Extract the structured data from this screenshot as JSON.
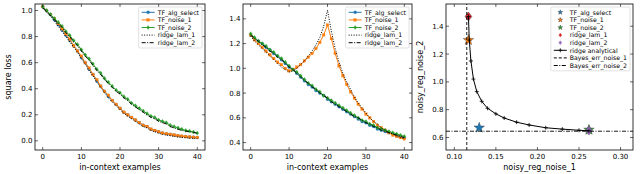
{
  "chart_data": [
    {
      "type": "line",
      "xlabel": "in-context examples",
      "ylabel": "square loss",
      "legend": "upper right",
      "grid": false,
      "xlim": [
        -2,
        42
      ],
      "xticks": [
        0,
        10,
        20,
        30,
        40
      ],
      "ylim": [
        -0.07,
        1.05
      ],
      "yticks": [
        {
          "value": 0,
          "label": "0.0"
        },
        0.2,
        0.4,
        0.6,
        0.8,
        {
          "value": 1,
          "label": "1.0"
        }
      ],
      "x": [
        0,
        1,
        2,
        3,
        4,
        5,
        6,
        7,
        8,
        9,
        10,
        11,
        12,
        13,
        14,
        15,
        16,
        17,
        18,
        19,
        20,
        21,
        22,
        23,
        24,
        25,
        26,
        27,
        28,
        29,
        30,
        31,
        32,
        33,
        34,
        35,
        36,
        37,
        38,
        39,
        40
      ],
      "series": [
        {
          "name": "TF_alg_select",
          "color": "#1f77b4",
          "marker": "circle",
          "line_style": "solid",
          "values": [
            1.03,
            1.0,
            0.97,
            0.93,
            0.89,
            0.85,
            0.81,
            0.77,
            0.73,
            0.69,
            0.64,
            0.6,
            0.55,
            0.51,
            0.46,
            0.42,
            0.38,
            0.34,
            0.31,
            0.28,
            0.25,
            0.22,
            0.2,
            0.18,
            0.16,
            0.14,
            0.12,
            0.11,
            0.09,
            0.08,
            0.07,
            0.06,
            0.055,
            0.05,
            0.045,
            0.04,
            0.035,
            0.033,
            0.03,
            0.028,
            0.026
          ]
        },
        {
          "name": "TF_noise_1",
          "color": "#ff7f0e",
          "marker": "square",
          "line_style": "solid",
          "values": [
            1.03,
            1.0,
            0.97,
            0.94,
            0.9,
            0.86,
            0.82,
            0.78,
            0.73,
            0.69,
            0.65,
            0.6,
            0.56,
            0.51,
            0.47,
            0.42,
            0.38,
            0.35,
            0.31,
            0.28,
            0.25,
            0.22,
            0.2,
            0.18,
            0.16,
            0.14,
            0.12,
            0.11,
            0.09,
            0.08,
            0.07,
            0.06,
            0.055,
            0.05,
            0.045,
            0.04,
            0.036,
            0.033,
            0.03,
            0.028,
            0.026
          ]
        },
        {
          "name": "TF_noise_2",
          "color": "#2ca02c",
          "marker": "diamond",
          "line_style": "solid",
          "values": [
            1.03,
            1.0,
            0.97,
            0.94,
            0.91,
            0.88,
            0.84,
            0.81,
            0.77,
            0.74,
            0.7,
            0.66,
            0.63,
            0.59,
            0.55,
            0.52,
            0.48,
            0.45,
            0.42,
            0.39,
            0.37,
            0.34,
            0.32,
            0.29,
            0.27,
            0.25,
            0.23,
            0.21,
            0.19,
            0.18,
            0.16,
            0.15,
            0.14,
            0.12,
            0.11,
            0.1,
            0.09,
            0.08,
            0.075,
            0.068,
            0.06
          ]
        },
        {
          "name": "ridge_lam_1",
          "color": "#000000",
          "line_style": "dotted",
          "values": [
            1.02,
            0.99,
            0.96,
            0.92,
            0.88,
            0.84,
            0.8,
            0.76,
            0.72,
            0.68,
            0.63,
            0.59,
            0.54,
            0.5,
            0.45,
            0.41,
            0.37,
            0.33,
            0.3,
            0.27,
            0.24,
            0.21,
            0.19,
            0.17,
            0.15,
            0.13,
            0.11,
            0.1,
            0.08,
            0.07,
            0.06,
            0.05,
            0.045,
            0.04,
            0.035,
            0.03,
            0.027,
            0.024,
            0.022,
            0.02,
            0.018
          ]
        },
        {
          "name": "ridge_lam_2",
          "color": "#000000",
          "line_style": "dashdot",
          "values": [
            1.02,
            0.99,
            0.96,
            0.93,
            0.9,
            0.87,
            0.83,
            0.8,
            0.76,
            0.73,
            0.69,
            0.65,
            0.62,
            0.58,
            0.54,
            0.51,
            0.47,
            0.44,
            0.41,
            0.38,
            0.36,
            0.33,
            0.31,
            0.28,
            0.26,
            0.24,
            0.22,
            0.2,
            0.18,
            0.17,
            0.15,
            0.14,
            0.13,
            0.11,
            0.1,
            0.09,
            0.08,
            0.075,
            0.07,
            0.065,
            0.058
          ]
        }
      ]
    },
    {
      "type": "line",
      "xlabel": "in-context examples",
      "legend": "upper right",
      "grid": false,
      "xlim": [
        -2,
        42
      ],
      "xticks": [
        0,
        10,
        20,
        30,
        40
      ],
      "ylim": [
        0.34,
        1.52
      ],
      "yticks": [
        0.4,
        0.6,
        0.8,
        {
          "value": 1,
          "label": "1.0"
        },
        1.2,
        1.4
      ],
      "x": [
        0,
        1,
        2,
        3,
        4,
        5,
        6,
        7,
        8,
        9,
        10,
        11,
        12,
        13,
        14,
        15,
        16,
        17,
        18,
        19,
        20,
        21,
        22,
        23,
        24,
        25,
        26,
        27,
        28,
        29,
        30,
        31,
        32,
        33,
        34,
        35,
        36,
        37,
        38,
        39,
        40
      ],
      "series": [
        {
          "name": "TF_alg_select",
          "color": "#1f77b4",
          "marker": "circle",
          "line_style": "solid",
          "values": [
            1.27,
            1.24,
            1.22,
            1.2,
            1.17,
            1.15,
            1.12,
            1.1,
            1.07,
            1.04,
            1.01,
            0.99,
            0.96,
            0.93,
            0.9,
            0.87,
            0.85,
            0.82,
            0.8,
            0.78,
            0.75,
            0.73,
            0.71,
            0.69,
            0.67,
            0.65,
            0.63,
            0.61,
            0.59,
            0.57,
            0.56,
            0.54,
            0.53,
            0.51,
            0.5,
            0.49,
            0.48,
            0.47,
            0.46,
            0.45,
            0.44
          ]
        },
        {
          "name": "TF_noise_1",
          "color": "#ff7f0e",
          "marker": "square",
          "line_style": "solid",
          "values": [
            1.27,
            1.23,
            1.2,
            1.17,
            1.14,
            1.11,
            1.08,
            1.05,
            1.03,
            1.0,
            0.98,
            0.99,
            1.01,
            1.03,
            1.06,
            1.09,
            1.12,
            1.16,
            1.21,
            1.27,
            1.35,
            1.24,
            1.12,
            1.02,
            0.94,
            0.87,
            0.81,
            0.76,
            0.71,
            0.67,
            0.63,
            0.6,
            0.57,
            0.54,
            0.52,
            0.5,
            0.48,
            0.46,
            0.45,
            0.44,
            0.43
          ]
        },
        {
          "name": "TF_noise_2",
          "color": "#2ca02c",
          "marker": "diamond",
          "line_style": "solid",
          "values": [
            1.28,
            1.25,
            1.22,
            1.2,
            1.18,
            1.15,
            1.13,
            1.1,
            1.08,
            1.05,
            1.02,
            0.99,
            0.97,
            0.94,
            0.91,
            0.88,
            0.86,
            0.83,
            0.81,
            0.78,
            0.76,
            0.74,
            0.72,
            0.7,
            0.68,
            0.66,
            0.64,
            0.62,
            0.6,
            0.58,
            0.57,
            0.55,
            0.54,
            0.52,
            0.51,
            0.5,
            0.49,
            0.48,
            0.47,
            0.46,
            0.45
          ]
        },
        {
          "name": "ridge_lam_1",
          "color": "#000000",
          "line_style": "dotted",
          "values": [
            1.26,
            1.22,
            1.19,
            1.16,
            1.13,
            1.1,
            1.07,
            1.04,
            1.01,
            0.99,
            0.97,
            0.98,
            1.0,
            1.03,
            1.06,
            1.1,
            1.14,
            1.19,
            1.25,
            1.34,
            1.47,
            1.3,
            1.16,
            1.05,
            0.96,
            0.89,
            0.83,
            0.77,
            0.72,
            0.68,
            0.64,
            0.6,
            0.57,
            0.55,
            0.52,
            0.5,
            0.48,
            0.47,
            0.45,
            0.44,
            0.43
          ]
        },
        {
          "name": "ridge_lam_2",
          "color": "#000000",
          "line_style": "dashdot",
          "values": [
            1.27,
            1.24,
            1.22,
            1.19,
            1.17,
            1.14,
            1.12,
            1.09,
            1.07,
            1.04,
            1.01,
            0.99,
            0.96,
            0.93,
            0.9,
            0.88,
            0.85,
            0.83,
            0.8,
            0.78,
            0.76,
            0.73,
            0.71,
            0.69,
            0.67,
            0.65,
            0.63,
            0.61,
            0.6,
            0.58,
            0.56,
            0.55,
            0.53,
            0.52,
            0.5,
            0.49,
            0.48,
            0.47,
            0.46,
            0.45,
            0.44
          ]
        }
      ]
    },
    {
      "type": "scatter",
      "xlabel": "noisy_reg_noise_1",
      "ylabel": "noisy_reg_noise_2",
      "legend": "upper right",
      "grid": false,
      "xlim": [
        0.09,
        0.315
      ],
      "xticks": [
        {
          "value": 0.1,
          "label": "0.10"
        },
        0.15,
        {
          "value": 0.2,
          "label": "0.20"
        },
        0.25,
        {
          "value": 0.3,
          "label": "0.30"
        }
      ],
      "ylim": [
        0.51,
        1.56
      ],
      "yticks": [
        0.6,
        0.8,
        {
          "value": 1,
          "label": "1.0"
        },
        1.2,
        1.4
      ],
      "series": [
        {
          "name": "TF_alg_select",
          "type": "scatter",
          "color": "#1f77b4",
          "marker": "star",
          "x": [
            0.13
          ],
          "values": [
            0.67
          ]
        },
        {
          "name": "TF_noise_1",
          "type": "scatter",
          "color": "#ff7f0e",
          "marker": "star",
          "x": [
            0.117
          ],
          "values": [
            1.3
          ]
        },
        {
          "name": "TF_noise_2",
          "type": "scatter",
          "color": "#2ca02c",
          "marker": "star",
          "x": [
            0.262
          ],
          "values": [
            0.655
          ]
        },
        {
          "name": "ridge_lam_1",
          "type": "scatter",
          "color": "#d62728",
          "marker": "diamond",
          "x": [
            0.117
          ],
          "values": [
            1.47
          ]
        },
        {
          "name": "ridge_lam_2",
          "type": "scatter",
          "color": "#9467bd",
          "marker": "diamond",
          "x": [
            0.262
          ],
          "values": [
            0.65
          ]
        },
        {
          "name": "ridge analytical",
          "type": "line",
          "color": "#000000",
          "marker": "plus",
          "line_style": "solid",
          "x": [
            0.117,
            0.118,
            0.12,
            0.123,
            0.127,
            0.133,
            0.14,
            0.15,
            0.16,
            0.175,
            0.19,
            0.21,
            0.23,
            0.25,
            0.262
          ],
          "values": [
            1.47,
            1.3,
            1.15,
            1.02,
            0.93,
            0.86,
            0.81,
            0.77,
            0.74,
            0.71,
            0.69,
            0.67,
            0.66,
            0.652,
            0.648
          ]
        },
        {
          "name": "Bayes_err_noise_1",
          "type": "vline",
          "color": "#000000",
          "line_style": "dashed",
          "x": [
            0.115
          ]
        },
        {
          "name": "Bayes_err_noise_2",
          "type": "hline",
          "color": "#000000",
          "line_style": "dashdot",
          "values": [
            0.645
          ]
        }
      ]
    }
  ]
}
